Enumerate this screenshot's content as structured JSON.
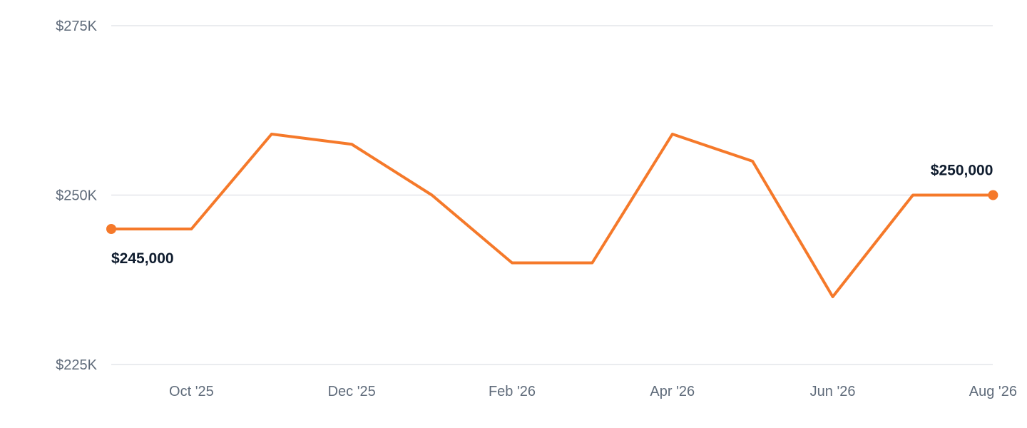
{
  "chart_data": {
    "type": "line",
    "title": "",
    "xlabel": "",
    "ylabel": "",
    "ylim": [
      225000,
      275000
    ],
    "yticks": [
      {
        "value": 225000,
        "label": "$225K"
      },
      {
        "value": 250000,
        "label": "$250K"
      },
      {
        "value": 275000,
        "label": "$275K"
      }
    ],
    "xticks": [
      {
        "x": "2025-10",
        "label": "Oct '25"
      },
      {
        "x": "2025-12",
        "label": "Dec '25"
      },
      {
        "x": "2026-02",
        "label": "Feb '26"
      },
      {
        "x": "2026-04",
        "label": "Apr '26"
      },
      {
        "x": "2026-06",
        "label": "Jun '26"
      },
      {
        "x": "2026-08",
        "label": "Aug '26"
      }
    ],
    "grid": true,
    "legend": "none",
    "series": [
      {
        "color": "#f5792a",
        "x": [
          "2025-09",
          "2025-10",
          "2025-11",
          "2025-12",
          "2026-01",
          "2026-02",
          "2026-03",
          "2026-04",
          "2026-05",
          "2026-06",
          "2026-07",
          "2026-08"
        ],
        "values": [
          245000,
          245000,
          259000,
          257500,
          250000,
          240000,
          240000,
          259000,
          255000,
          235000,
          250000,
          250000
        ]
      }
    ],
    "annotations": [
      {
        "x": "2025-09",
        "value": 245000,
        "label": "$245,000",
        "position": "below"
      },
      {
        "x": "2026-08",
        "value": 250000,
        "label": "$250,000",
        "position": "above"
      }
    ]
  }
}
